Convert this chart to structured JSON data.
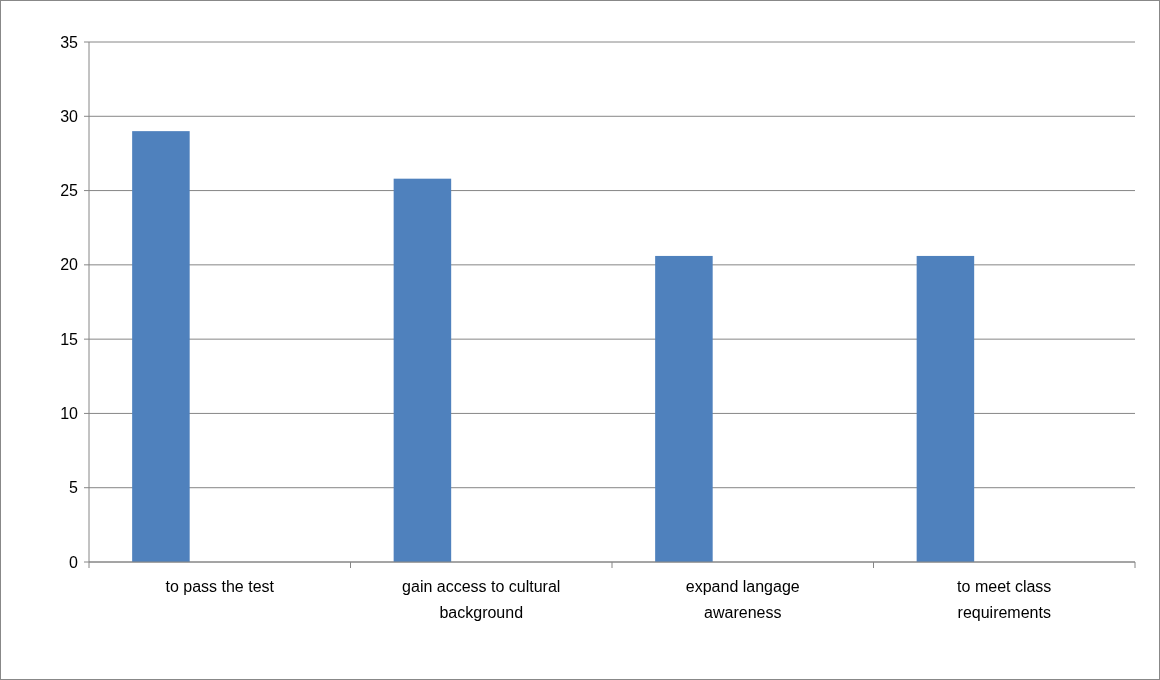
{
  "chart_data": {
    "type": "bar",
    "categories": [
      "to pass the test",
      "gain access to cultural background",
      "expand langage awareness",
      "to meet class requirements"
    ],
    "values": [
      29,
      25.8,
      20.6,
      20.6
    ],
    "color": "#4f81bd",
    "ylim": [
      0,
      35
    ],
    "yticks": [
      0,
      5,
      10,
      15,
      20,
      25,
      30,
      35
    ],
    "grid": "y"
  }
}
